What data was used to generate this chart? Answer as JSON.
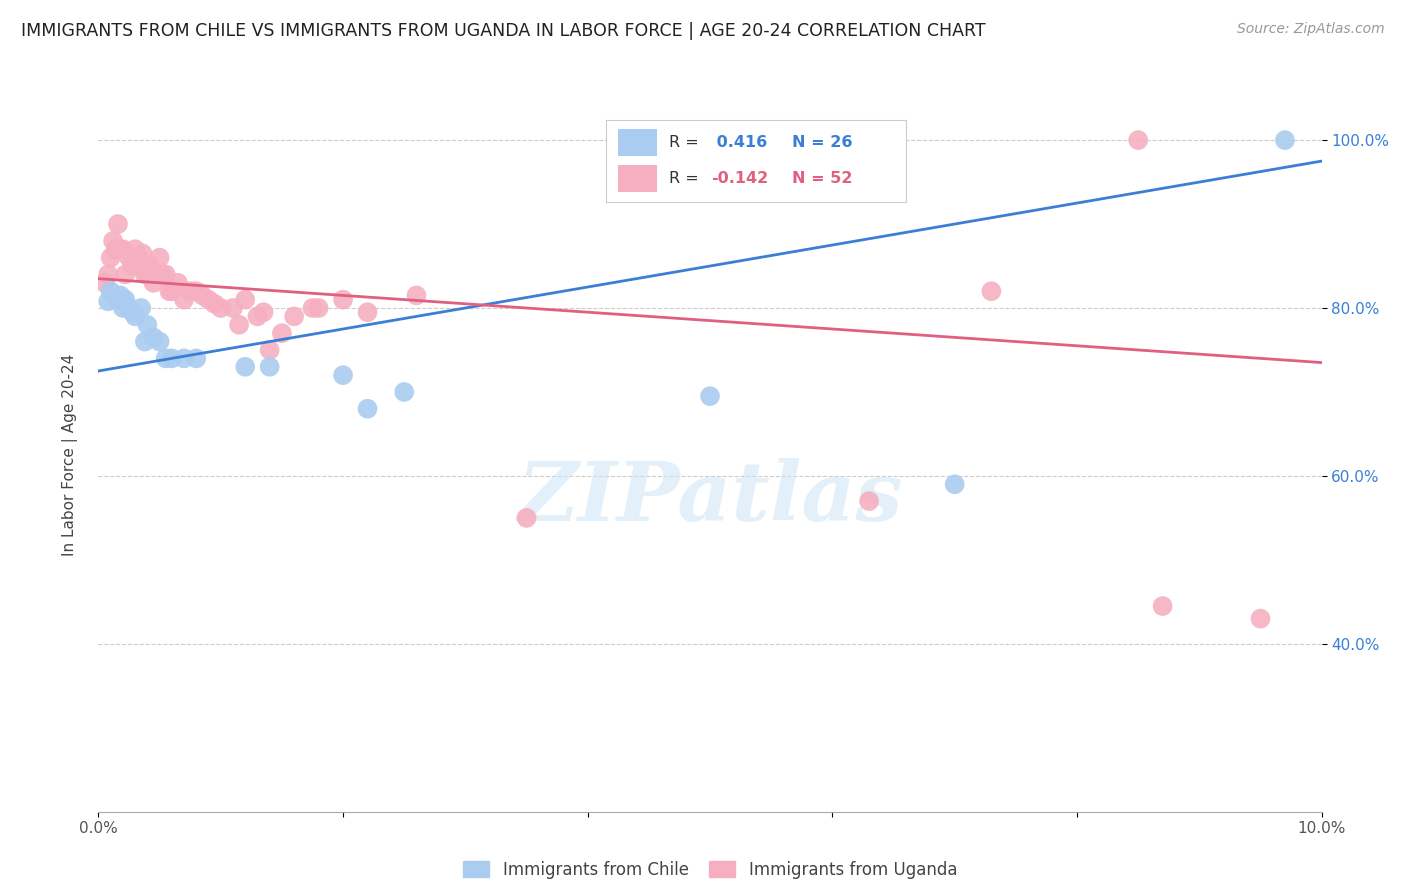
{
  "title": "IMMIGRANTS FROM CHILE VS IMMIGRANTS FROM UGANDA IN LABOR FORCE | AGE 20-24 CORRELATION CHART",
  "source": "Source: ZipAtlas.com",
  "ylabel": "In Labor Force | Age 20-24",
  "xlim": [
    0.0,
    0.1
  ],
  "ylim": [
    0.2,
    1.05
  ],
  "xticks": [
    0.0,
    0.02,
    0.04,
    0.06,
    0.08,
    0.1
  ],
  "yticks": [
    0.4,
    0.6,
    0.8,
    1.0
  ],
  "ytick_labels": [
    "40.0%",
    "60.0%",
    "80.0%",
    "100.0%"
  ],
  "chile_R": 0.416,
  "chile_N": 26,
  "uganda_R": -0.142,
  "uganda_N": 52,
  "chile_color": "#aaccf0",
  "uganda_color": "#f5afc0",
  "chile_line_color": "#3a7fd5",
  "uganda_line_color": "#e06080",
  "legend_label_chile": "Immigrants from Chile",
  "legend_label_uganda": "Immigrants from Uganda",
  "watermark": "ZIPatlas",
  "chile_line_x0": 0.0,
  "chile_line_y0": 0.725,
  "chile_line_x1": 0.1,
  "chile_line_y1": 0.975,
  "uganda_line_x0": 0.0,
  "uganda_line_y0": 0.835,
  "uganda_line_x1": 0.1,
  "uganda_line_y1": 0.735,
  "chile_points_x": [
    0.0008,
    0.001,
    0.0015,
    0.0018,
    0.002,
    0.0022,
    0.0025,
    0.0028,
    0.003,
    0.0035,
    0.0038,
    0.004,
    0.0045,
    0.005,
    0.0055,
    0.006,
    0.007,
    0.008,
    0.012,
    0.014,
    0.02,
    0.022,
    0.025,
    0.05,
    0.07,
    0.097
  ],
  "chile_points_y": [
    0.808,
    0.82,
    0.81,
    0.815,
    0.8,
    0.81,
    0.8,
    0.795,
    0.79,
    0.8,
    0.76,
    0.78,
    0.765,
    0.76,
    0.74,
    0.74,
    0.74,
    0.74,
    0.73,
    0.73,
    0.72,
    0.68,
    0.7,
    0.695,
    0.59,
    1.0
  ],
  "uganda_points_x": [
    0.0005,
    0.0008,
    0.001,
    0.0012,
    0.0014,
    0.0016,
    0.0018,
    0.002,
    0.0022,
    0.0025,
    0.0028,
    0.003,
    0.0032,
    0.0034,
    0.0036,
    0.0038,
    0.004,
    0.0042,
    0.0045,
    0.0048,
    0.005,
    0.0052,
    0.0055,
    0.0058,
    0.006,
    0.0065,
    0.007,
    0.0075,
    0.008,
    0.0085,
    0.009,
    0.0095,
    0.01,
    0.011,
    0.0115,
    0.012,
    0.013,
    0.0135,
    0.014,
    0.015,
    0.016,
    0.0175,
    0.018,
    0.02,
    0.022,
    0.026,
    0.035,
    0.063,
    0.073,
    0.085,
    0.087,
    0.095
  ],
  "uganda_points_y": [
    0.83,
    0.84,
    0.86,
    0.88,
    0.87,
    0.9,
    0.87,
    0.87,
    0.84,
    0.86,
    0.85,
    0.87,
    0.86,
    0.855,
    0.865,
    0.84,
    0.84,
    0.85,
    0.83,
    0.84,
    0.86,
    0.84,
    0.84,
    0.82,
    0.82,
    0.83,
    0.81,
    0.82,
    0.82,
    0.815,
    0.81,
    0.805,
    0.8,
    0.8,
    0.78,
    0.81,
    0.79,
    0.795,
    0.75,
    0.77,
    0.79,
    0.8,
    0.8,
    0.81,
    0.795,
    0.815,
    0.55,
    0.57,
    0.82,
    1.0,
    0.445,
    0.43
  ]
}
